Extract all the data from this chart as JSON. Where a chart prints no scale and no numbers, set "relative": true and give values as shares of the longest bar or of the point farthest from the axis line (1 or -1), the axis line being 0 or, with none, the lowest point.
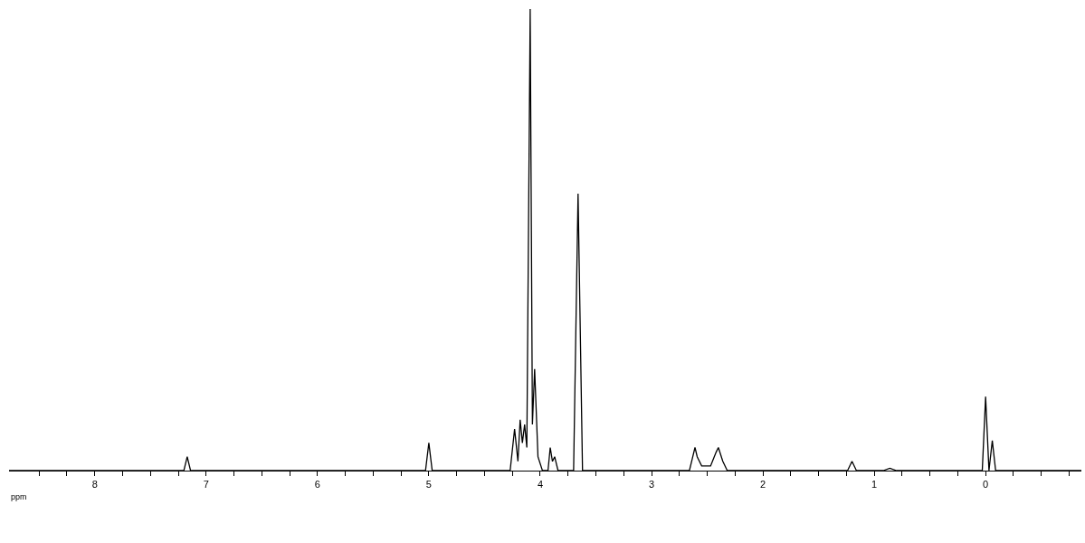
{
  "chart_data": {
    "type": "line",
    "relative": true,
    "xlabel": "ppm",
    "grid": false,
    "marker": "none",
    "line_style": "solid",
    "xlim": [
      8.77,
      -0.86
    ],
    "xticks": [
      {
        "value": 8.5,
        "label": null
      },
      {
        "value": 8.25,
        "label": null
      },
      8,
      {
        "value": 7.75,
        "label": null
      },
      {
        "value": 7.5,
        "label": null
      },
      {
        "value": 7.25,
        "label": null
      },
      7,
      {
        "value": 6.75,
        "label": null
      },
      {
        "value": 6.5,
        "label": null
      },
      {
        "value": 6.25,
        "label": null
      },
      6,
      {
        "value": 5.75,
        "label": null
      },
      {
        "value": 5.5,
        "label": null
      },
      {
        "value": 5.25,
        "label": null
      },
      5,
      {
        "value": 4.75,
        "label": null
      },
      {
        "value": 4.5,
        "label": null
      },
      {
        "value": 4.25,
        "label": null
      },
      4,
      {
        "value": 3.75,
        "label": null
      },
      {
        "value": 3.5,
        "label": null
      },
      {
        "value": 3.25,
        "label": null
      },
      3,
      {
        "value": 2.75,
        "label": null
      },
      {
        "value": 2.5,
        "label": null
      },
      {
        "value": 2.25,
        "label": null
      },
      2,
      {
        "value": 1.75,
        "label": null
      },
      {
        "value": 1.5,
        "label": null
      },
      {
        "value": 1.25,
        "label": null
      },
      1,
      {
        "value": 0.75,
        "label": null
      },
      {
        "value": 0.5,
        "label": null
      },
      {
        "value": 0.25,
        "label": null
      },
      0,
      {
        "value": -0.25,
        "label": null
      },
      {
        "value": -0.5,
        "label": null
      },
      {
        "value": -0.75,
        "label": null
      }
    ],
    "series": [
      {
        "color": "#000000",
        "x": [
          8.77,
          7.2,
          7.17,
          7.14,
          5.03,
          5.0,
          4.97,
          4.27,
          4.23,
          4.2,
          4.18,
          4.16,
          4.14,
          4.12,
          4.09,
          4.07,
          4.05,
          4.02,
          3.98,
          3.93,
          3.91,
          3.89,
          3.87,
          3.84,
          3.7,
          3.66,
          3.62,
          2.66,
          2.61,
          2.59,
          2.55,
          2.47,
          2.42,
          2.4,
          2.36,
          2.32,
          1.24,
          1.2,
          1.16,
          0.92,
          0.86,
          0.8,
          0.03,
          0,
          -0.03,
          -0.06,
          -0.09,
          -0.86
        ],
        "values": [
          0,
          0,
          0.03,
          0,
          0,
          0.06,
          0,
          0,
          0.09,
          0.02,
          0.11,
          0.06,
          0.1,
          0.05,
          1.0,
          0.1,
          0.22,
          0.03,
          0,
          0,
          0.05,
          0.02,
          0.03,
          0,
          0,
          0.6,
          0,
          0,
          0.05,
          0.03,
          0.01,
          0.01,
          0.04,
          0.05,
          0.02,
          0,
          0,
          0.02,
          0,
          0,
          0.005,
          0,
          0,
          0.16,
          0,
          0.065,
          0,
          0
        ]
      }
    ]
  }
}
